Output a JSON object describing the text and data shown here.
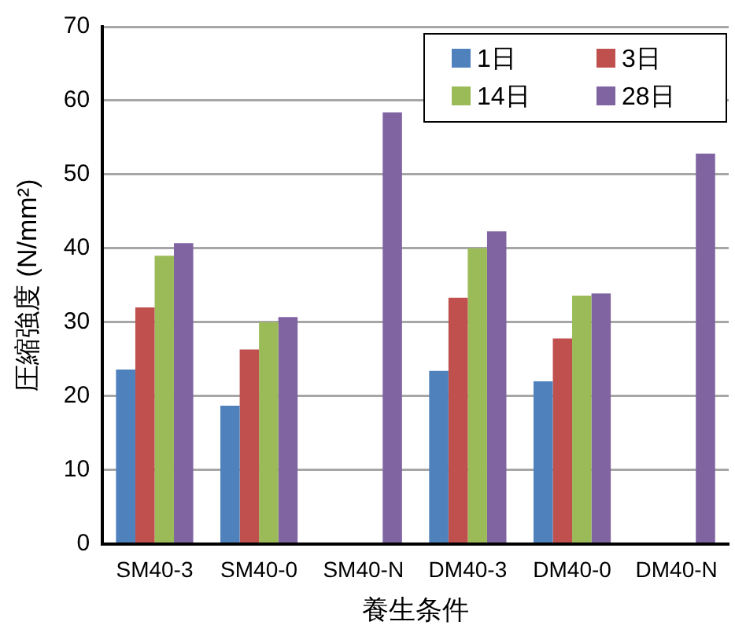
{
  "chart_data": {
    "type": "bar",
    "xlabel": "養生条件",
    "ylabel": "圧縮強度 (N/mm²)",
    "categories": [
      "SM40-3",
      "SM40-0",
      "SM40-N",
      "DM40-3",
      "DM40-0",
      "DM40-N"
    ],
    "series": [
      {
        "name": "1日",
        "color": "#4f81bd",
        "values": [
          23.6,
          18.7,
          null,
          23.4,
          22.0,
          null
        ]
      },
      {
        "name": "3日",
        "color": "#c0504d",
        "values": [
          32.0,
          26.3,
          null,
          33.3,
          27.8,
          null
        ]
      },
      {
        "name": "14日",
        "color": "#9bbb59",
        "values": [
          39.0,
          30.0,
          null,
          40.0,
          33.6,
          null
        ]
      },
      {
        "name": "28日",
        "color": "#8064a2",
        "values": [
          40.7,
          30.7,
          58.4,
          42.3,
          33.9,
          52.8
        ]
      }
    ],
    "ylim": [
      0,
      70
    ],
    "yticks": [
      0,
      10,
      20,
      30,
      40,
      50,
      60,
      70
    ],
    "grid": "y",
    "legend": "top right"
  }
}
